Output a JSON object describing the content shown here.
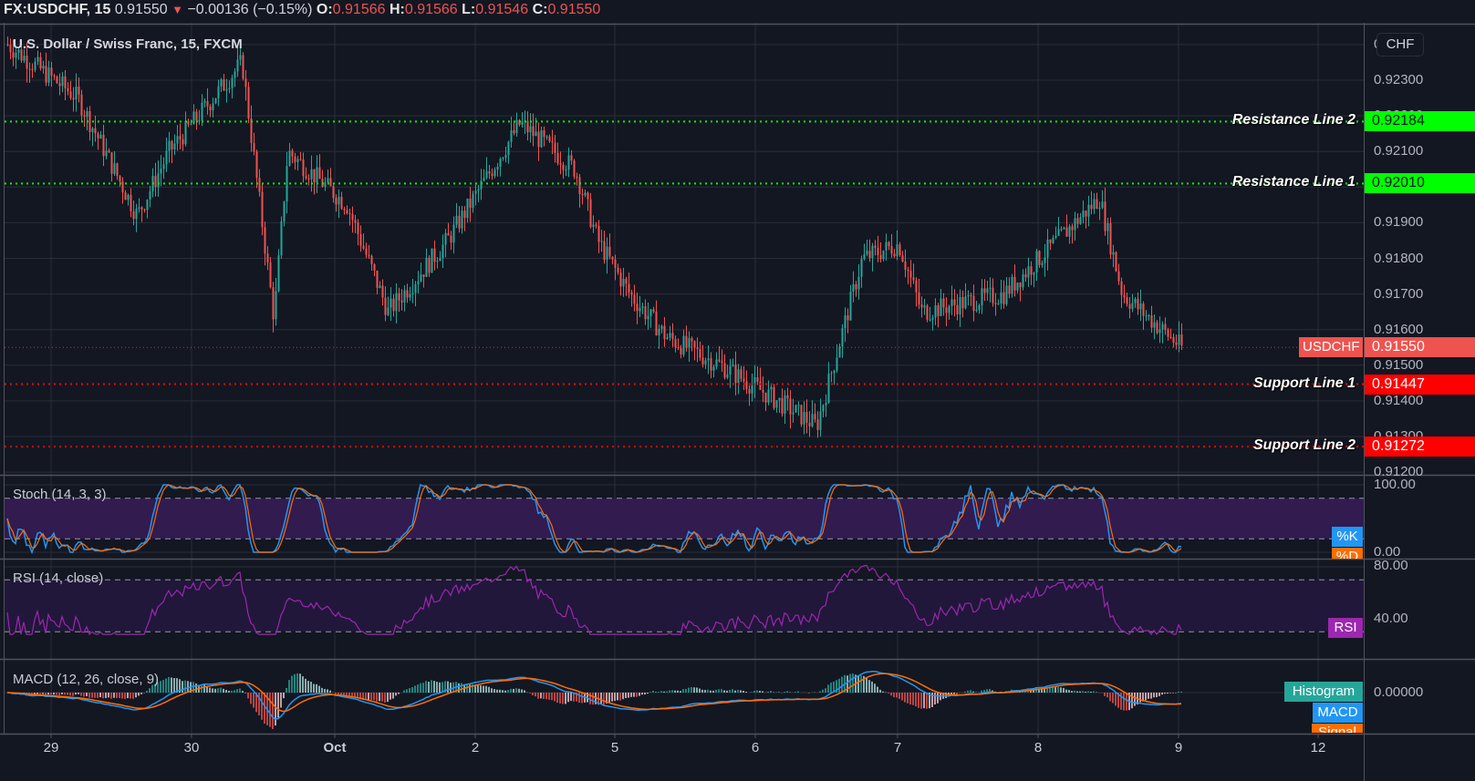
{
  "header": {
    "symbol": "FX:USDCHF, 15",
    "last": "0.91550",
    "change": "−0.00136 (−0.15%)",
    "direction_icon": "triangle-down-icon",
    "open_label": "O:",
    "open": "0.91566",
    "high_label": "H:",
    "high": "0.91566",
    "low_label": "L:",
    "low": "0.91546",
    "close_label": "C:",
    "close": "0.91550"
  },
  "main_pane": {
    "legend": "U.S. Dollar / Swiss Franc, 15, FXCM",
    "currency_badge": "CHF",
    "price_ticks": [
      "0.92400",
      "0.92300",
      "0.92200",
      "0.92100",
      "0.92000",
      "0.91900",
      "0.91800",
      "0.91700",
      "0.91600",
      "0.91500",
      "0.91400",
      "0.91300",
      "0.91200"
    ],
    "horizontal_lines": [
      {
        "label": "Resistance Line 2",
        "price": "0.92184",
        "color": "#00ff00",
        "text_color": "#131722"
      },
      {
        "label": "Resistance Line 1",
        "price": "0.92010",
        "color": "#00ff00",
        "text_color": "#131722"
      },
      {
        "label": "Support Line 1",
        "price": "0.91447",
        "color": "#ff0000",
        "text_color": "#ffffff"
      },
      {
        "label": "Support Line 2",
        "price": "0.91272",
        "color": "#ff0000",
        "text_color": "#ffffff"
      }
    ],
    "last_price_label": {
      "symbol": "USDCHF",
      "price": "0.91550",
      "color": "#ef5350"
    }
  },
  "stoch_pane": {
    "legend": "Stoch (14, 3, 3)",
    "ticks": [
      "100.00",
      "0.00"
    ],
    "band": [
      20,
      80
    ],
    "labels": [
      {
        "text": "%K",
        "color": "#2196f3"
      },
      {
        "text": "%D",
        "color": "#ff6d00"
      }
    ]
  },
  "rsi_pane": {
    "legend": "RSI (14, close)",
    "ticks": [
      "80.00",
      "40.00"
    ],
    "band": [
      30,
      70
    ],
    "labels": [
      {
        "text": "RSI",
        "color": "#9c27b0"
      }
    ]
  },
  "macd_pane": {
    "legend": "MACD (12, 26, close, 9)",
    "ticks": [
      "0.00000"
    ],
    "labels": [
      {
        "text": "Histogram",
        "color": "#26a69a"
      },
      {
        "text": "MACD",
        "color": "#2196f3"
      },
      {
        "text": "Signal",
        "color": "#ff6d00"
      }
    ]
  },
  "time_axis": {
    "labels": [
      "29",
      "30",
      "Oct",
      "2",
      "5",
      "6",
      "7",
      "8",
      "9",
      "12"
    ]
  },
  "colors": {
    "background": "#131722",
    "grid": "#2a2e39",
    "up": "#26a69a",
    "down": "#ef5350",
    "resistance": "#00ff00",
    "support": "#ff0000",
    "stoch_band": "#311b4f",
    "rsi_band": "#21173a"
  },
  "chart_data": {
    "type": "candlestick",
    "title": "U.S. Dollar / Swiss Franc, 15, FXCM",
    "symbol": "FX:USDCHF",
    "interval": "15",
    "ylabel": "CHF",
    "ylim": [
      0.912,
      0.9242
    ],
    "x_tick_labels": [
      "29",
      "30",
      "Oct",
      "2",
      "5",
      "6",
      "7",
      "8",
      "9",
      "12"
    ],
    "price_path_keypoints": [
      {
        "x": "29 early",
        "price": 0.924
      },
      {
        "x": "29 mid",
        "price": 0.9225
      },
      {
        "x": "29 late",
        "price": 0.9192
      },
      {
        "x": "30 early",
        "price": 0.921
      },
      {
        "x": "30 mid",
        "price": 0.9235
      },
      {
        "x": "30 late spike",
        "price": 0.9163
      },
      {
        "x": "Oct 1 early",
        "price": 0.921
      },
      {
        "x": "Oct 1 mid",
        "price": 0.9195
      },
      {
        "x": "Oct 1 low",
        "price": 0.9165
      },
      {
        "x": "Oct 1 late",
        "price": 0.9185
      },
      {
        "x": "2 high",
        "price": 0.9218
      },
      {
        "x": "2 late",
        "price": 0.9205
      },
      {
        "x": "5 early",
        "price": 0.9185
      },
      {
        "x": "5 mid",
        "price": 0.917
      },
      {
        "x": "5 late",
        "price": 0.9158
      },
      {
        "x": "6 mid",
        "price": 0.915
      },
      {
        "x": "6 low",
        "price": 0.9133
      },
      {
        "x": "7 early",
        "price": 0.918
      },
      {
        "x": "7 high",
        "price": 0.9184
      },
      {
        "x": "7 late",
        "price": 0.9165
      },
      {
        "x": "8 mid",
        "price": 0.917
      },
      {
        "x": "8 high",
        "price": 0.9197
      },
      {
        "x": "9 early",
        "price": 0.917
      },
      {
        "x": "9 last",
        "price": 0.9155
      }
    ],
    "last_ohlc": {
      "open": 0.91566,
      "high": 0.91566,
      "low": 0.91546,
      "close": 0.9155
    },
    "change": -0.00136,
    "change_pct": -0.15,
    "horizontal_levels": [
      {
        "name": "Resistance Line 2",
        "value": 0.92184
      },
      {
        "name": "Resistance Line 1",
        "value": 0.9201
      },
      {
        "name": "Support Line 1",
        "value": 0.91447
      },
      {
        "name": "Support Line 2",
        "value": 0.91272
      }
    ],
    "indicators": [
      {
        "name": "Stoch (14, 3, 3)",
        "ylim": [
          0,
          100
        ],
        "series": [
          "%K",
          "%D"
        ],
        "last_k": 10,
        "last_d": 8
      },
      {
        "name": "RSI (14, close)",
        "ylim": [
          25,
          85
        ],
        "series": [
          "RSI"
        ],
        "last": 36
      },
      {
        "name": "MACD (12, 26, close, 9)",
        "series": [
          "Histogram",
          "MACD",
          "Signal"
        ],
        "zero_line": 0.0
      }
    ]
  }
}
